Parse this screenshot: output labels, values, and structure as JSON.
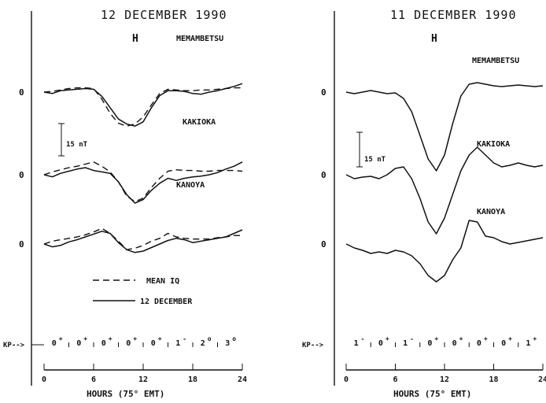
{
  "chart_data": [
    {
      "type": "line",
      "title": "12 DECEMBER 1990",
      "component": "H",
      "xlabel": "HOURS (75° EMT)",
      "xlim": [
        0,
        24
      ],
      "xticks": [
        0,
        6,
        12,
        18,
        24
      ],
      "scale_bar": "15 nT",
      "zero_label": "0",
      "kp_label": "KP-->",
      "kp": [
        {
          "base": "0",
          "mod": "+"
        },
        {
          "base": "0",
          "mod": "+"
        },
        {
          "base": "0",
          "mod": "+"
        },
        {
          "base": "0",
          "mod": "+"
        },
        {
          "base": "0",
          "mod": "+"
        },
        {
          "base": "1",
          "mod": "-"
        },
        {
          "base": "2",
          "mod": "o"
        },
        {
          "base": "3",
          "mod": "o"
        }
      ],
      "legend": {
        "mean_label": "MEAN IQ",
        "day_label": "12 DECEMBER"
      },
      "stations": [
        {
          "name": "MEMAMBETSU",
          "x": [
            0,
            1,
            2,
            3,
            4,
            5,
            6,
            7,
            8,
            9,
            10,
            11,
            12,
            13,
            14,
            15,
            16,
            17,
            18,
            19,
            20,
            21,
            22,
            23,
            24
          ],
          "solid": [
            0,
            -2,
            2,
            3,
            4,
            5,
            4,
            -6,
            -22,
            -38,
            -45,
            -48,
            -42,
            -22,
            -5,
            2,
            2,
            1,
            -2,
            -3,
            0,
            2,
            5,
            8,
            12
          ],
          "dashed": [
            0,
            1,
            3,
            5,
            6,
            6,
            5,
            -10,
            -30,
            -44,
            -48,
            -45,
            -35,
            -18,
            -2,
            4,
            3,
            2,
            2,
            3,
            3,
            4,
            5,
            6,
            6
          ]
        },
        {
          "name": "KAKIOKA",
          "x": [
            0,
            1,
            2,
            3,
            4,
            5,
            6,
            7,
            8,
            9,
            10,
            11,
            12,
            13,
            14,
            15,
            16,
            17,
            18,
            19,
            20,
            21,
            22,
            23,
            24
          ],
          "solid": [
            0,
            -3,
            2,
            5,
            8,
            10,
            6,
            4,
            2,
            -10,
            -28,
            -40,
            -35,
            -22,
            -12,
            -5,
            -8,
            -5,
            -3,
            -2,
            0,
            3,
            8,
            12,
            18
          ],
          "dashed": [
            0,
            4,
            7,
            10,
            12,
            15,
            18,
            12,
            4,
            -10,
            -30,
            -38,
            -33,
            -18,
            -5,
            5,
            7,
            6,
            6,
            5,
            5,
            6,
            6,
            6,
            5
          ]
        },
        {
          "name": "KANOYA",
          "x": [
            0,
            1,
            2,
            3,
            4,
            5,
            6,
            7,
            8,
            9,
            10,
            11,
            12,
            13,
            14,
            15,
            16,
            17,
            18,
            19,
            20,
            21,
            22,
            23,
            24
          ],
          "solid": [
            0,
            -4,
            -2,
            3,
            6,
            10,
            14,
            18,
            15,
            2,
            -8,
            -12,
            -10,
            -5,
            0,
            5,
            8,
            6,
            2,
            4,
            6,
            8,
            10,
            15,
            20
          ],
          "dashed": [
            0,
            4,
            6,
            8,
            10,
            13,
            17,
            22,
            15,
            4,
            -8,
            -6,
            -2,
            4,
            8,
            15,
            10,
            8,
            7,
            7,
            7,
            9,
            10,
            12,
            12
          ]
        }
      ]
    },
    {
      "type": "line",
      "title": "11 DECEMBER 1990",
      "component": "H",
      "xlabel": "HOURS (75° EMT)",
      "xlim": [
        0,
        24
      ],
      "xticks": [
        0,
        6,
        12,
        18,
        24
      ],
      "scale_bar": "15 nT",
      "zero_label": "0",
      "kp_label": "KP-->",
      "kp": [
        {
          "base": "1",
          "mod": "-"
        },
        {
          "base": "0",
          "mod": "+"
        },
        {
          "base": "1",
          "mod": "-"
        },
        {
          "base": "0",
          "mod": "+"
        },
        {
          "base": "0",
          "mod": "+"
        },
        {
          "base": "0",
          "mod": "+"
        },
        {
          "base": "0",
          "mod": "+"
        },
        {
          "base": "1",
          "mod": "+"
        }
      ],
      "stations": [
        {
          "name": "MEMAMBETSU",
          "x": [
            0,
            1,
            2,
            3,
            4,
            5,
            6,
            7,
            8,
            9,
            10,
            11,
            12,
            13,
            14,
            15,
            16,
            17,
            18,
            19,
            20,
            21,
            22,
            23,
            24
          ],
          "solid": [
            0,
            -2,
            0,
            2,
            0,
            -2,
            -1,
            -8,
            -25,
            -55,
            -85,
            -100,
            -80,
            -40,
            -5,
            10,
            12,
            10,
            8,
            7,
            8,
            9,
            8,
            7,
            8
          ]
        },
        {
          "name": "KAKIOKA",
          "x": [
            0,
            1,
            2,
            3,
            4,
            5,
            6,
            7,
            8,
            9,
            10,
            11,
            12,
            13,
            14,
            15,
            16,
            17,
            18,
            19,
            20,
            21,
            22,
            23,
            24
          ],
          "solid": [
            0,
            -5,
            -3,
            -2,
            -5,
            0,
            8,
            10,
            -5,
            -30,
            -60,
            -75,
            -55,
            -25,
            5,
            25,
            35,
            25,
            15,
            10,
            12,
            15,
            12,
            10,
            12
          ]
        },
        {
          "name": "KANOYA",
          "x": [
            0,
            1,
            2,
            3,
            4,
            5,
            6,
            7,
            8,
            9,
            10,
            11,
            12,
            13,
            14,
            15,
            16,
            17,
            18,
            19,
            20,
            21,
            22,
            23,
            24
          ],
          "solid": [
            0,
            -5,
            -8,
            -12,
            -10,
            -12,
            -8,
            -10,
            -15,
            -25,
            -40,
            -48,
            -40,
            -20,
            -5,
            30,
            28,
            10,
            8,
            3,
            0,
            2,
            4,
            6,
            8
          ]
        }
      ]
    }
  ]
}
